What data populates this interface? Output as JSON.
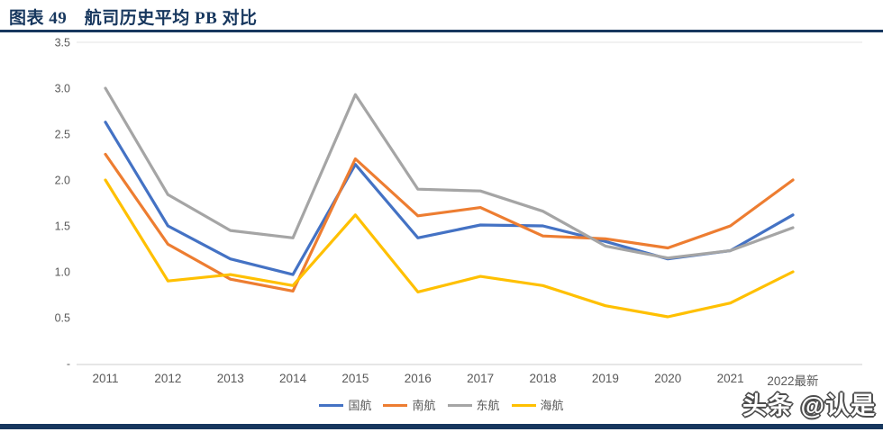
{
  "header": {
    "title": "图表 49　航司历史平均 PB 对比"
  },
  "watermark": {
    "text": "头条 @认是"
  },
  "colors": {
    "accent_navy": "#17375E",
    "axis_text": "#595959",
    "axis_line": "#D6D6D6",
    "top_border": "#E3E3E3"
  },
  "chart_data": {
    "type": "line",
    "categories": [
      "2011",
      "2012",
      "2013",
      "2014",
      "2015",
      "2016",
      "2017",
      "2018",
      "2019",
      "2020",
      "2021",
      "2022最新"
    ],
    "series": [
      {
        "name": "国航",
        "color": "#4472C4",
        "values": [
          2.63,
          1.5,
          1.14,
          0.97,
          2.17,
          1.37,
          1.51,
          1.5,
          1.33,
          1.14,
          1.23,
          1.62
        ]
      },
      {
        "name": "南航",
        "color": "#ED7D31",
        "values": [
          2.28,
          1.3,
          0.92,
          0.79,
          2.23,
          1.61,
          1.7,
          1.39,
          1.36,
          1.26,
          1.5,
          2.0
        ]
      },
      {
        "name": "东航",
        "color": "#A5A5A5",
        "values": [
          3.0,
          1.84,
          1.45,
          1.37,
          2.93,
          1.9,
          1.88,
          1.66,
          1.28,
          1.15,
          1.23,
          1.48
        ]
      },
      {
        "name": "海航",
        "color": "#FFC000",
        "values": [
          2.0,
          0.9,
          0.97,
          0.85,
          1.62,
          0.78,
          0.95,
          0.85,
          0.63,
          0.51,
          0.66,
          1.0
        ]
      }
    ],
    "ylim": [
      0,
      3.5
    ],
    "yticks": [
      {
        "value": 0,
        "label": "-"
      },
      {
        "value": 0.5,
        "label": "0.5"
      },
      {
        "value": 1.0,
        "label": "1.0"
      },
      {
        "value": 1.5,
        "label": "1.5"
      },
      {
        "value": 2.0,
        "label": "2.0"
      },
      {
        "value": 2.5,
        "label": "2.5"
      },
      {
        "value": 3.0,
        "label": "3.0"
      },
      {
        "value": 3.5,
        "label": "3.5"
      }
    ],
    "grid": false,
    "legend_position": "bottom"
  }
}
